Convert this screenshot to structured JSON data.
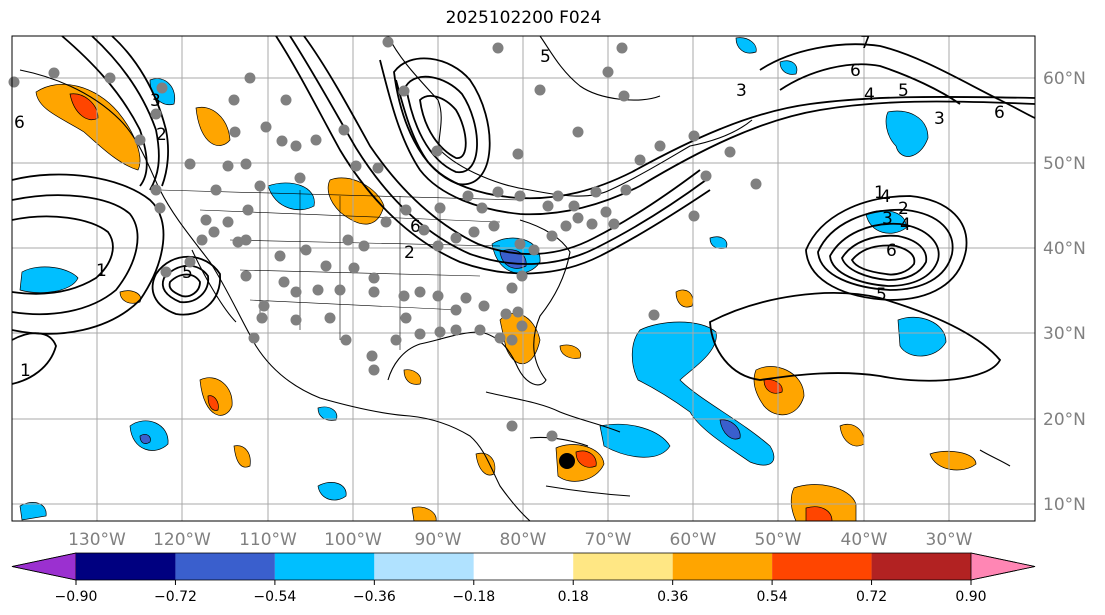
{
  "title": "2025102200 F024",
  "map": {
    "lon_labels": [
      "130°W",
      "120°W",
      "110°W",
      "100°W",
      "90°W",
      "80°W",
      "70°W",
      "60°W",
      "50°W",
      "40°W",
      "30°W"
    ],
    "lat_labels": [
      "60°N",
      "50°N",
      "40°N",
      "30°N",
      "20°N",
      "10°N"
    ],
    "contour_labels": [
      "6",
      "3",
      "2",
      "2",
      "1",
      "1",
      "5",
      "6",
      "7",
      "6",
      "5",
      "4",
      "3",
      "3",
      "6",
      "5",
      "4",
      "1",
      "2",
      "3",
      "4",
      "6",
      "5"
    ],
    "marker": "black-dot-storm-center"
  },
  "colorbar": {
    "ticks": [
      "−0.90",
      "−0.72",
      "−0.54",
      "−0.36",
      "−0.18",
      "0.18",
      "0.36",
      "0.54",
      "0.72",
      "0.90"
    ],
    "colors": [
      "#9b30d0",
      "#000080",
      "#3a5fcd",
      "#00bfff",
      "#b0e2ff",
      "#ffffff",
      "#ffe784",
      "#ffa500",
      "#ff4500",
      "#b22222",
      "#ff86b4"
    ]
  }
}
